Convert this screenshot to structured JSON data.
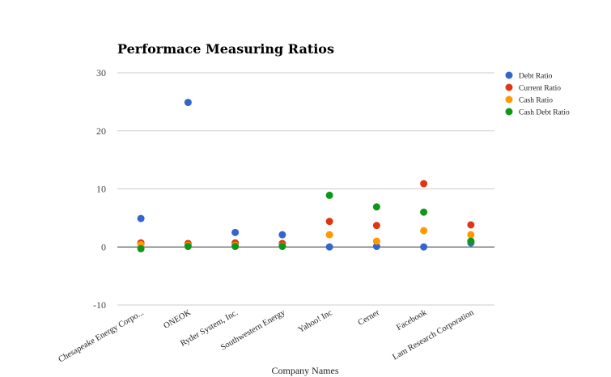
{
  "chart_data": {
    "type": "scatter",
    "title": "Performace Measuring Ratios",
    "xlabel": "Company Names",
    "ylabel": "",
    "ylim": [
      -10,
      30
    ],
    "yticks": [
      -10,
      0,
      10,
      20,
      30
    ],
    "grid": true,
    "legend_position": "right",
    "categories": [
      "Chesapeake Energy Corpo...",
      "ONEOK",
      "Ryder System, Inc.",
      "Southwestern Energy",
      "Yahoo! Inc",
      "Cerner",
      "Facebook",
      "Lam Research Corporation"
    ],
    "series": [
      {
        "name": "Debt Ratio",
        "color": "#3366cc",
        "values": [
          4.9,
          24.9,
          2.5,
          2.1,
          0.0,
          0.1,
          0.0,
          0.7
        ]
      },
      {
        "name": "Current Ratio",
        "color": "#dc3912",
        "values": [
          0.7,
          0.6,
          0.7,
          0.6,
          4.4,
          3.7,
          10.9,
          3.8
        ]
      },
      {
        "name": "Cash Ratio",
        "color": "#ff9900",
        "values": [
          0.4,
          0.3,
          0.3,
          0.2,
          2.1,
          1.0,
          2.8,
          2.1
        ]
      },
      {
        "name": "Cash Debt Ratio",
        "color": "#109618",
        "values": [
          -0.3,
          0.1,
          0.1,
          0.1,
          8.9,
          6.9,
          6.0,
          1.0
        ]
      }
    ]
  }
}
